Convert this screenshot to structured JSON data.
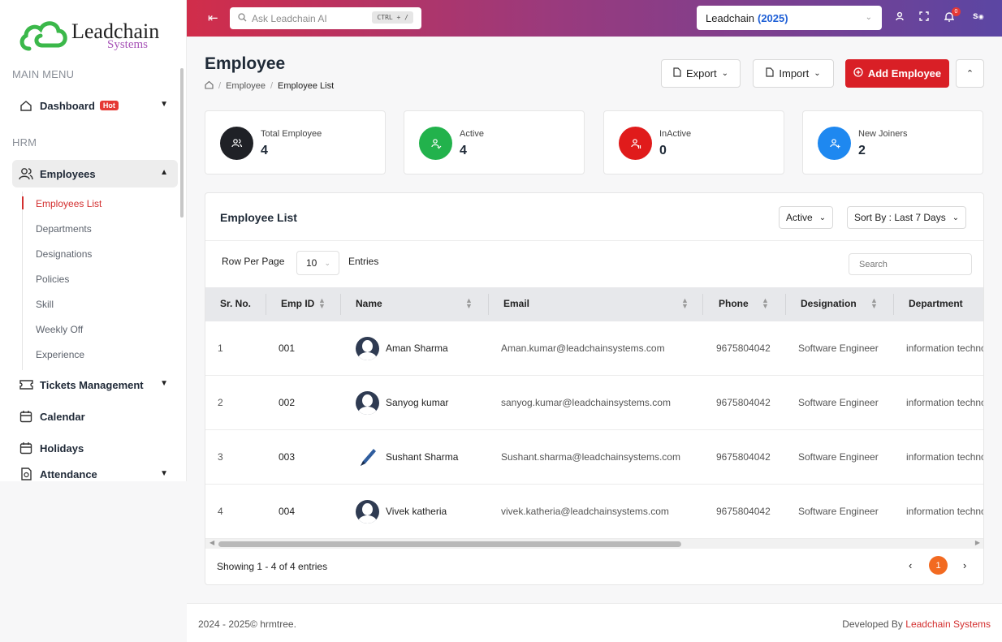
{
  "logo": {
    "line1": "Leadchain",
    "line2": "Systems"
  },
  "sidebar": {
    "main_menu_title": "MAIN MENU",
    "hrm_title": "HRM",
    "dashboard": {
      "label": "Dashboard",
      "badge": "Hot"
    },
    "employees": {
      "label": "Employees"
    },
    "employee_sub": [
      {
        "label": "Employees List"
      },
      {
        "label": "Departments"
      },
      {
        "label": "Designations"
      },
      {
        "label": "Policies"
      },
      {
        "label": "Skill"
      },
      {
        "label": "Weekly Off"
      },
      {
        "label": "Experience"
      }
    ],
    "tickets": {
      "label": "Tickets Management"
    },
    "calendar": {
      "label": "Calendar"
    },
    "holidays": {
      "label": "Holidays"
    },
    "attendance": {
      "label": "Attendance"
    }
  },
  "topbar": {
    "search_placeholder": "Ask Leadchain AI",
    "shortcut": "CTRL + /",
    "company": "Leadchain",
    "year": "(2025)",
    "notification_count": "0",
    "user_initial": "s"
  },
  "header": {
    "title": "Employee",
    "breadcrumb": [
      "Employee",
      "Employee List"
    ],
    "export_label": "Export",
    "import_label": "Import",
    "add_label": "Add Employee"
  },
  "stats": [
    {
      "label": "Total Employee",
      "value": "4",
      "color": "#1f2126"
    },
    {
      "label": "Active",
      "value": "4",
      "color": "#22b24c"
    },
    {
      "label": "InActive",
      "value": "0",
      "color": "#e01b1b"
    },
    {
      "label": "New Joiners",
      "value": "2",
      "color": "#1e88f0"
    }
  ],
  "list": {
    "title": "Employee List",
    "status_filter": "Active",
    "sort_label": "Sort By : Last 7 Days",
    "rows_per_page_label": "Row Per Page",
    "rows_per_page": "10",
    "entries_label": "Entries",
    "search_placeholder": "Search",
    "columns": [
      "Sr. No.",
      "Emp ID",
      "Name",
      "Email",
      "Phone",
      "Designation",
      "Department"
    ],
    "rows": [
      {
        "sr": "1",
        "emp_id": "001",
        "name": "Aman Sharma",
        "email": "Aman.kumar@leadchainsystems.com",
        "phone": "9675804042",
        "designation": "Software Engineer",
        "department": "information technology"
      },
      {
        "sr": "2",
        "emp_id": "002",
        "name": "Sanyog kumar",
        "email": "sanyog.kumar@leadchainsystems.com",
        "phone": "9675804042",
        "designation": "Software Engineer",
        "department": "information technology"
      },
      {
        "sr": "3",
        "emp_id": "003",
        "name": "Sushant Sharma",
        "email": "Sushant.sharma@leadchainsystems.com",
        "phone": "9675804042",
        "designation": "Software Engineer",
        "department": "information technology"
      },
      {
        "sr": "4",
        "emp_id": "004",
        "name": "Vivek katheria",
        "email": "vivek.katheria@leadchainsystems.com",
        "phone": "9675804042",
        "designation": "Software Engineer",
        "department": "information technology"
      }
    ],
    "showing": "Showing 1 - 4 of 4 entries",
    "current_page": "1"
  },
  "footer": {
    "left": "2024 - 2025© hrmtree.",
    "right_prefix": "Developed By",
    "right_brand": "Leadchain Systems"
  },
  "colors": {
    "accent": "#d91f26",
    "page_active": "#f26a21"
  }
}
